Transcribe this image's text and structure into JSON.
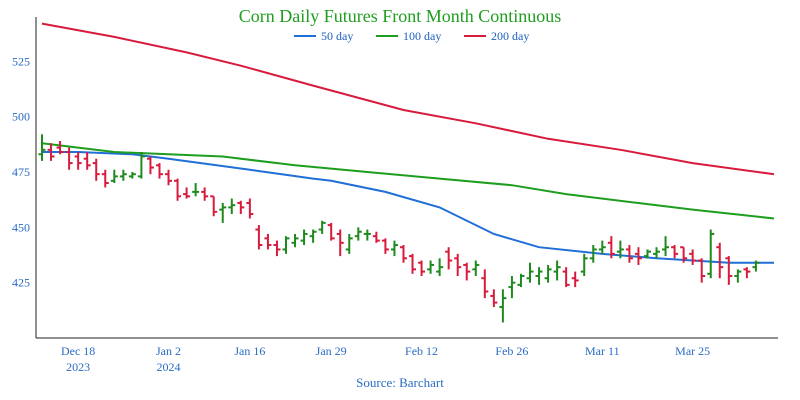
{
  "chart_data": {
    "type": "ohlc",
    "title": "Corn Daily Futures Front Month Continuous",
    "source": "Source: Barchart",
    "y_ticks": [
      425,
      450,
      475,
      500,
      525
    ],
    "ylim": [
      400,
      545
    ],
    "x_ticks": [
      {
        "label": "Dec 18",
        "sub": "2023",
        "day": 4
      },
      {
        "label": "Jan 2",
        "sub": "2024",
        "day": 14
      },
      {
        "label": "Jan 16",
        "sub": "",
        "day": 23
      },
      {
        "label": "Jan 29",
        "sub": "",
        "day": 32
      },
      {
        "label": "Feb 12",
        "sub": "",
        "day": 42
      },
      {
        "label": "Feb 26",
        "sub": "",
        "day": 52
      },
      {
        "label": "Mar 11",
        "sub": "",
        "day": 62
      },
      {
        "label": "Mar 25",
        "sub": "",
        "day": 72
      }
    ],
    "x_range": [
      0,
      81
    ],
    "up_color": "#1e8a1e",
    "down_color": "#d81b3c",
    "series": [
      {
        "name": "50 day",
        "color": "#1f6fd6",
        "points": [
          [
            0,
            484
          ],
          [
            4,
            484
          ],
          [
            10,
            483
          ],
          [
            14,
            481
          ],
          [
            23,
            476
          ],
          [
            30,
            472
          ],
          [
            32,
            471
          ],
          [
            38,
            466
          ],
          [
            44,
            459
          ],
          [
            50,
            447
          ],
          [
            55,
            441
          ],
          [
            62,
            438
          ],
          [
            68,
            436
          ],
          [
            76,
            434
          ],
          [
            81,
            434
          ]
        ]
      },
      {
        "name": "100 day",
        "color": "#1e9e1e",
        "points": [
          [
            0,
            488
          ],
          [
            4,
            486
          ],
          [
            8,
            484
          ],
          [
            14,
            483
          ],
          [
            20,
            482
          ],
          [
            28,
            478
          ],
          [
            36,
            475
          ],
          [
            44,
            472
          ],
          [
            52,
            469
          ],
          [
            58,
            465
          ],
          [
            66,
            461
          ],
          [
            72,
            458
          ],
          [
            81,
            454
          ]
        ]
      },
      {
        "name": "200 day",
        "color": "#d81b3c",
        "points": [
          [
            0,
            542
          ],
          [
            8,
            536
          ],
          [
            16,
            529
          ],
          [
            22,
            523
          ],
          [
            30,
            514
          ],
          [
            40,
            503
          ],
          [
            48,
            497
          ],
          [
            56,
            490
          ],
          [
            64,
            485
          ],
          [
            72,
            479
          ],
          [
            81,
            474
          ]
        ]
      }
    ],
    "ohlc": [
      [
        0,
        483,
        492,
        480,
        485
      ],
      [
        1,
        485,
        488,
        480,
        482
      ],
      [
        2,
        486,
        489,
        483,
        484
      ],
      [
        3,
        484,
        486,
        476,
        479
      ],
      [
        4,
        482,
        484,
        476,
        479
      ],
      [
        5,
        481,
        484,
        476,
        478
      ],
      [
        6,
        479,
        481,
        471,
        474
      ],
      [
        7,
        474,
        476,
        468,
        470
      ],
      [
        8,
        471,
        476,
        470,
        473
      ],
      [
        9,
        473,
        476,
        471,
        474
      ],
      [
        10,
        473,
        475,
        472,
        474
      ],
      [
        11,
        473,
        484,
        472,
        482
      ],
      [
        12,
        481,
        482,
        474,
        477
      ],
      [
        13,
        478,
        479,
        472,
        474
      ],
      [
        14,
        474,
        476,
        469,
        471
      ],
      [
        15,
        471,
        472,
        462,
        464
      ],
      [
        16,
        465,
        468,
        463,
        464
      ],
      [
        17,
        466,
        470,
        464,
        466
      ],
      [
        18,
        466,
        468,
        462,
        464
      ],
      [
        19,
        464,
        464,
        455,
        457
      ],
      [
        20,
        458,
        461,
        452,
        459
      ],
      [
        21,
        459,
        463,
        456,
        460
      ],
      [
        22,
        461,
        462,
        456,
        459
      ],
      [
        23,
        461,
        463,
        454,
        456
      ],
      [
        24,
        449,
        451,
        440,
        442
      ],
      [
        25,
        445,
        447,
        440,
        442
      ],
      [
        26,
        442,
        444,
        437,
        440
      ],
      [
        27,
        440,
        446,
        438,
        445
      ],
      [
        28,
        443,
        447,
        441,
        445
      ],
      [
        29,
        444,
        449,
        442,
        447
      ],
      [
        30,
        446,
        449,
        443,
        448
      ],
      [
        31,
        449,
        453,
        447,
        452
      ],
      [
        32,
        451,
        452,
        444,
        445
      ],
      [
        33,
        447,
        449,
        437,
        443
      ],
      [
        34,
        440,
        447,
        438,
        445
      ],
      [
        35,
        446,
        450,
        444,
        448
      ],
      [
        36,
        447,
        449,
        444,
        447
      ],
      [
        37,
        446,
        448,
        443,
        444
      ],
      [
        38,
        444,
        445,
        438,
        440
      ],
      [
        39,
        440,
        444,
        437,
        442
      ],
      [
        40,
        441,
        442,
        434,
        436
      ],
      [
        41,
        437,
        438,
        429,
        431
      ],
      [
        42,
        434,
        435,
        428,
        430
      ],
      [
        43,
        431,
        435,
        429,
        433
      ],
      [
        44,
        430,
        436,
        428,
        432
      ],
      [
        45,
        439,
        441,
        431,
        435
      ],
      [
        46,
        436,
        438,
        428,
        432
      ],
      [
        47,
        433,
        434,
        426,
        430
      ],
      [
        48,
        431,
        435,
        428,
        433
      ],
      [
        49,
        427,
        431,
        418,
        421
      ],
      [
        50,
        419,
        422,
        414,
        416
      ],
      [
        51,
        414,
        422,
        407,
        418
      ],
      [
        52,
        423,
        428,
        418,
        425
      ],
      [
        53,
        424,
        429,
        423,
        428
      ],
      [
        54,
        427,
        434,
        425,
        430
      ],
      [
        55,
        428,
        432,
        424,
        430
      ],
      [
        56,
        427,
        433,
        425,
        431
      ],
      [
        57,
        430,
        435,
        426,
        432
      ],
      [
        58,
        430,
        432,
        423,
        424
      ],
      [
        59,
        427,
        430,
        423,
        426
      ],
      [
        60,
        430,
        438,
        428,
        436
      ],
      [
        61,
        436,
        442,
        434,
        440
      ],
      [
        62,
        440,
        444,
        438,
        441
      ],
      [
        63,
        443,
        446,
        436,
        438
      ],
      [
        64,
        439,
        444,
        436,
        440
      ],
      [
        65,
        440,
        442,
        434,
        436
      ],
      [
        66,
        438,
        441,
        433,
        436
      ],
      [
        67,
        437,
        440,
        436,
        439
      ],
      [
        68,
        438,
        441,
        436,
        439
      ],
      [
        69,
        440,
        446,
        437,
        441
      ],
      [
        70,
        441,
        442,
        436,
        438
      ],
      [
        71,
        441,
        441,
        434,
        436
      ],
      [
        72,
        438,
        440,
        433,
        435
      ],
      [
        73,
        435,
        436,
        425,
        428
      ],
      [
        74,
        429,
        449,
        427,
        447
      ],
      [
        75,
        441,
        443,
        427,
        432
      ],
      [
        76,
        436,
        437,
        424,
        428
      ],
      [
        77,
        428,
        431,
        425,
        430
      ],
      [
        78,
        431,
        432,
        427,
        430
      ],
      [
        79,
        432,
        435,
        430,
        434
      ]
    ]
  }
}
